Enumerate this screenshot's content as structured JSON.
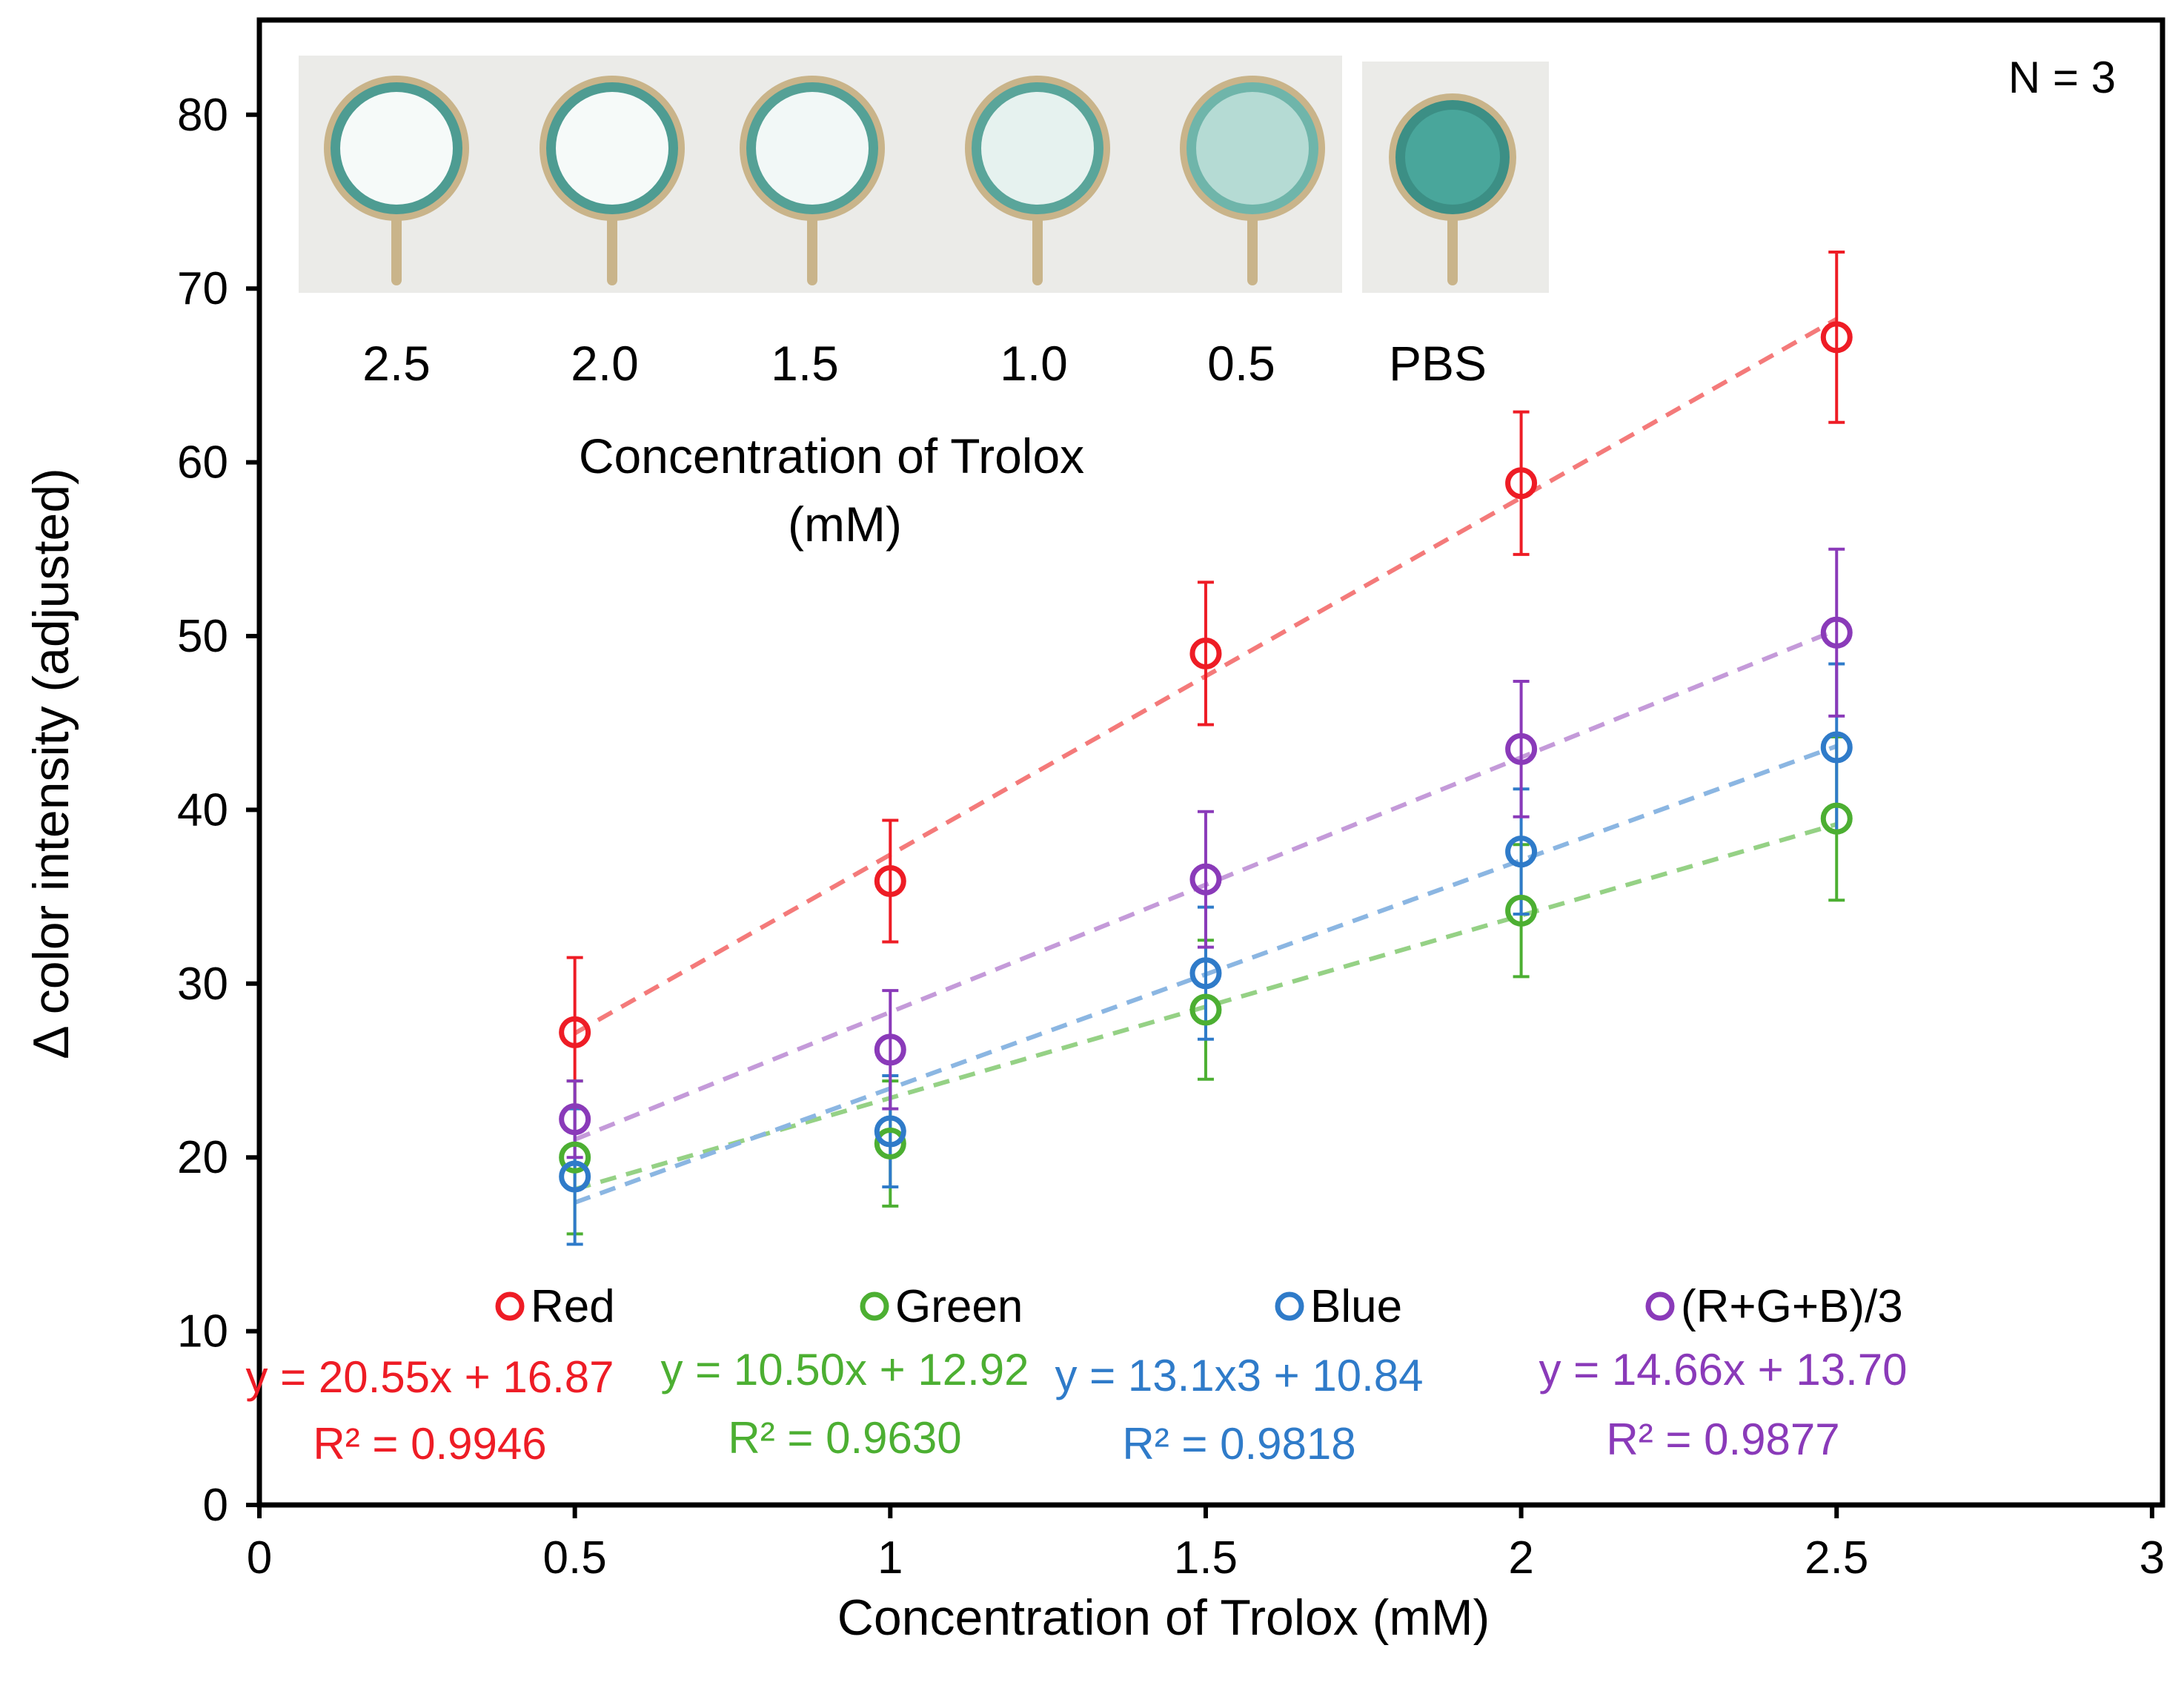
{
  "chart_data": {
    "type": "scatter",
    "title": "",
    "xlabel": "Concentration  of Trolox (mM)",
    "ylabel": "Δ color intensity (adjusted)",
    "xlim": [
      0,
      3
    ],
    "ylim": [
      0,
      84
    ],
    "x_ticks": [
      0,
      0.5,
      1,
      1.5,
      2,
      2.5,
      3
    ],
    "x_tick_labels": [
      "0",
      "0.5",
      "1",
      "1.5",
      "2",
      "2.5",
      "3"
    ],
    "y_ticks": [
      0,
      10,
      20,
      30,
      40,
      50,
      60,
      70,
      80
    ],
    "y_tick_labels": [
      "0",
      "10",
      "20",
      "30",
      "40",
      "50",
      "60",
      "70",
      "80"
    ],
    "annotation": "N = 3",
    "x": [
      0.5,
      1,
      1.5,
      2,
      2.5
    ],
    "series": [
      {
        "name": "Red",
        "color": "#ee1c25",
        "trend_color": "#f47a7a",
        "values": [
          27.2,
          35.9,
          49.0,
          58.8,
          67.2
        ],
        "errors": [
          4.3,
          3.5,
          4.1,
          4.1,
          4.9
        ],
        "slope": 20.55,
        "intercept": 16.87,
        "equation": "y = 20.55x + 16.87",
        "r2": "R² = 0.9946"
      },
      {
        "name": "Green",
        "color": "#4caf32",
        "trend_color": "#95d185",
        "values": [
          20.0,
          20.8,
          28.5,
          34.2,
          39.5
        ],
        "errors": [
          4.4,
          3.6,
          4.0,
          3.8,
          4.7
        ],
        "slope": 10.5,
        "intercept": 12.92,
        "equation": "y = 10.50x + 12.92",
        "r2": "R² = 0.9630"
      },
      {
        "name": "Blue",
        "color": "#2f7bc9",
        "trend_color": "#8bb6e2",
        "values": [
          18.9,
          21.5,
          30.6,
          37.6,
          43.6
        ],
        "errors": [
          3.9,
          3.2,
          3.8,
          3.6,
          4.8
        ],
        "slope": 13.13,
        "intercept": 10.84,
        "equation": "y = 13.1x3 + 10.84",
        "r2": "R² = 0.9818"
      },
      {
        "name": "(R+G+B)/3",
        "color": "#8a3ab9",
        "trend_color": "#c49ad9",
        "values": [
          22.2,
          26.2,
          36.0,
          43.5,
          50.2
        ],
        "errors": [
          2.2,
          3.4,
          3.9,
          3.9,
          4.8
        ],
        "slope": 14.66,
        "intercept": 13.7,
        "equation": "y = 14.66x + 13.70",
        "r2": "R² = 0.9877"
      }
    ]
  },
  "inset": {
    "labels": [
      "2.5",
      "2.0",
      "1.5",
      "1.0",
      "0.5",
      "PBS"
    ],
    "title_line1": "Concentration  of Trolox",
    "title_line2": "(mM)",
    "pbs_color": "#4aa89c",
    "rim_color": "#c9b48a"
  }
}
